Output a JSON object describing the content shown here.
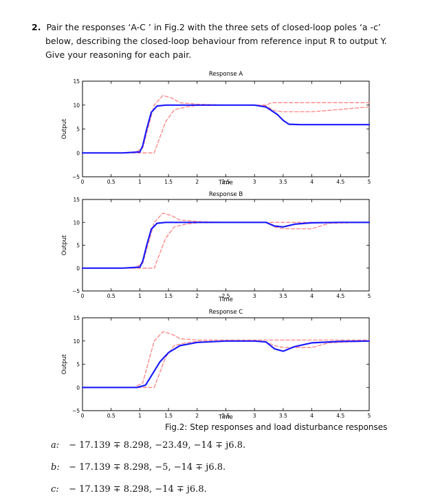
{
  "question": {
    "number": "2.",
    "line1": "Pair the responses ‘A-C ’ in Fig.2  with the three sets of closed-loop poles ‘a -c’",
    "line2": "below, describing the closed-loop behaviour from reference input  R to output  Y.",
    "line3": "Give your reasoning for each pair."
  },
  "caption": "Fig.2: Step responses and load disturbance responses",
  "options": [
    {
      "label": "a:",
      "text": "− 17.139 ∓ 8.298, −23.49, −14 ∓ j6.8."
    },
    {
      "label": "b:",
      "text": "− 17.139 ∓ 8.298, −5, −14 ∓ j6.8."
    },
    {
      "label": "c:",
      "text": "− 17.139 ∓ 8.298,  −14 ∓ j6.8."
    }
  ],
  "chart_data": [
    {
      "type": "line",
      "title": "Response A",
      "xlabel": "Time",
      "ylabel": "Output",
      "xlim": [
        0,
        5
      ],
      "ylim": [
        -5,
        15
      ],
      "xticks": [
        "0",
        "0.5",
        "1",
        "1.5",
        "2",
        "2.5",
        "3",
        "3.5",
        "4",
        "4.5",
        "5"
      ],
      "yticks": [
        "-5",
        "0",
        "5",
        "10",
        "15"
      ],
      "series": [
        {
          "style": "solid",
          "color": "#1a1aff",
          "x": [
            0,
            0.7,
            1,
            1.05,
            1.12,
            1.2,
            1.3,
            1.45,
            1.6,
            2,
            2.5,
            3,
            3.2,
            3.4,
            3.5,
            3.6,
            3.8,
            4,
            4.5,
            5
          ],
          "y": [
            0,
            0,
            0.2,
            1.5,
            5,
            8.5,
            9.8,
            10,
            10,
            10,
            10,
            10,
            9.6,
            8,
            6.8,
            6,
            5.9,
            5.9,
            5.9,
            5.9
          ]
        },
        {
          "style": "dashed",
          "color": "#ff8080",
          "x": [
            0,
            0.9,
            1.05,
            1.25,
            1.4,
            1.55,
            1.7,
            2,
            2.5,
            3,
            3.2,
            3.3,
            4,
            5
          ],
          "y": [
            0,
            0,
            1,
            10,
            12,
            11.5,
            10.5,
            10.2,
            10,
            10,
            10,
            10.5,
            10.5,
            10.5
          ]
        },
        {
          "style": "dashed",
          "color": "#ff8080",
          "x": [
            0,
            1.1,
            1.25,
            1.45,
            1.6,
            1.8,
            2,
            2.5,
            3,
            3.2,
            3.35,
            3.5,
            4,
            5
          ],
          "y": [
            0,
            0,
            0,
            6.5,
            9,
            9.6,
            9.9,
            10,
            10,
            9.8,
            8.8,
            8.6,
            8.6,
            9.6
          ]
        }
      ]
    },
    {
      "type": "line",
      "title": "Response B",
      "xlabel": "Time",
      "ylabel": "Output",
      "xlim": [
        0,
        5
      ],
      "ylim": [
        -5,
        15
      ],
      "xticks": [
        "0",
        "0.5",
        "1",
        "1.5",
        "2",
        "2.5",
        "3",
        "3.5",
        "4",
        "4.5",
        "5"
      ],
      "yticks": [
        "-5",
        "0",
        "5",
        "10",
        "15"
      ],
      "series": [
        {
          "style": "solid",
          "color": "#1a1aff",
          "x": [
            0,
            0.7,
            1,
            1.05,
            1.12,
            1.2,
            1.3,
            1.45,
            1.6,
            2,
            2.5,
            3,
            3.2,
            3.35,
            3.5,
            3.7,
            4,
            4.5,
            5
          ],
          "y": [
            0,
            0,
            0.2,
            1.5,
            5,
            8.5,
            9.8,
            10,
            10,
            10,
            10,
            10,
            10,
            9.2,
            9,
            9.6,
            9.9,
            10,
            10
          ]
        },
        {
          "style": "dashed",
          "color": "#ff8080",
          "x": [
            0,
            0.9,
            1.05,
            1.25,
            1.4,
            1.55,
            1.7,
            2,
            2.5,
            3,
            5
          ],
          "y": [
            0,
            0,
            1,
            10,
            12,
            11.5,
            10.5,
            10.2,
            10,
            10,
            10
          ]
        },
        {
          "style": "dashed",
          "color": "#ff8080",
          "x": [
            0,
            1.1,
            1.25,
            1.45,
            1.6,
            1.8,
            2,
            2.5,
            3,
            3.2,
            3.35,
            3.5,
            4,
            4.3,
            5
          ],
          "y": [
            0,
            0,
            0,
            6.5,
            9,
            9.6,
            9.9,
            10,
            10,
            10,
            9,
            8.6,
            8.6,
            9.8,
            10
          ]
        }
      ]
    },
    {
      "type": "line",
      "title": "Response C",
      "xlabel": "Time",
      "ylabel": "Output",
      "xlim": [
        0,
        5
      ],
      "ylim": [
        -5,
        15
      ],
      "xticks": [
        "0",
        "0.5",
        "1",
        "1.5",
        "2",
        "2.5",
        "3",
        "3.5",
        "4",
        "4.5",
        "5"
      ],
      "yticks": [
        "-5",
        "0",
        "5",
        "10",
        "15"
      ],
      "series": [
        {
          "style": "solid",
          "color": "#1a1aff",
          "x": [
            0,
            0.95,
            1.1,
            1.2,
            1.35,
            1.5,
            1.7,
            2,
            2.5,
            3,
            3.2,
            3.35,
            3.5,
            3.7,
            4,
            4.5,
            5
          ],
          "y": [
            0,
            0,
            0.5,
            2.5,
            5.5,
            7.5,
            9,
            9.7,
            10,
            10,
            9.8,
            8.3,
            7.8,
            8.8,
            9.6,
            9.9,
            10
          ]
        },
        {
          "style": "dashed",
          "color": "#ff8080",
          "x": [
            0,
            0.9,
            1.05,
            1.25,
            1.4,
            1.55,
            1.7,
            2,
            2.5,
            3,
            5
          ],
          "y": [
            0,
            0,
            1,
            10,
            12,
            11.5,
            10.5,
            10.2,
            10.2,
            10.2,
            10.2
          ]
        },
        {
          "style": "dashed",
          "color": "#ff8080",
          "x": [
            0,
            1.1,
            1.25,
            1.45,
            1.6,
            1.8,
            2,
            2.5,
            3,
            3.2,
            3.35,
            3.5,
            4,
            4.3,
            5
          ],
          "y": [
            0,
            0,
            0,
            6.5,
            9,
            9.6,
            9.9,
            10,
            10,
            9.8,
            9,
            8.6,
            8.6,
            9.6,
            10
          ]
        }
      ]
    }
  ]
}
